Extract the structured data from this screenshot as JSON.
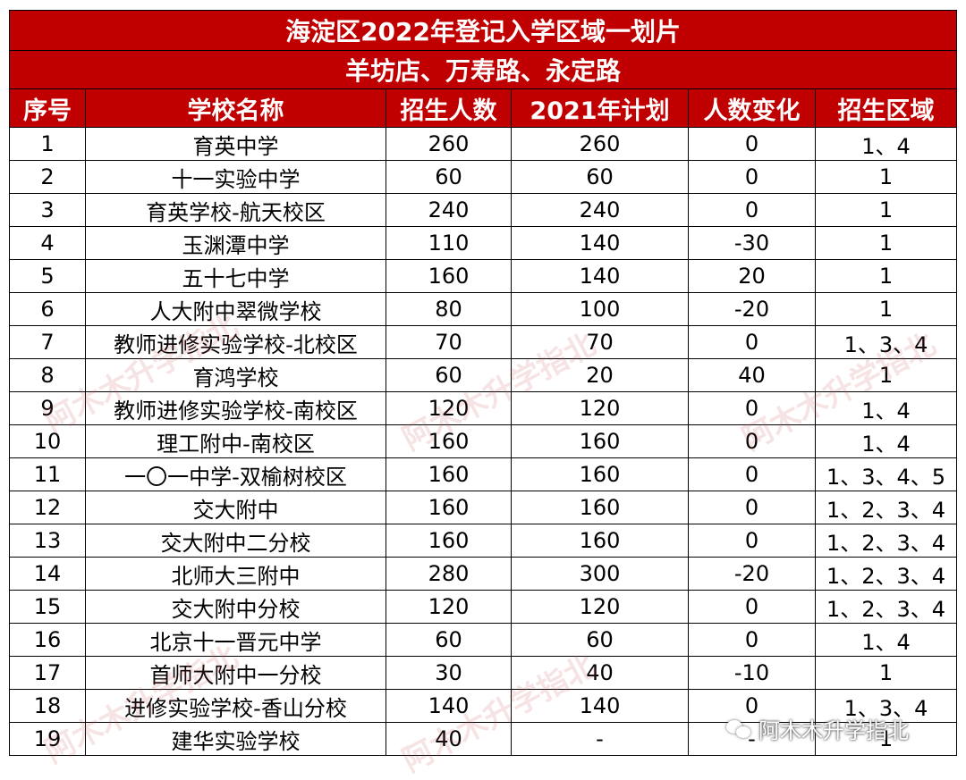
{
  "title": "海淀区2022年登记入学区域一划片",
  "subtitle": "羊坊店、万寿路、永定路",
  "headers": [
    "序号",
    "学校名称",
    "招生人数",
    "2021年计划",
    "人数变化",
    "招生区域"
  ],
  "rows": [
    [
      "1",
      "育英中学",
      "260",
      "260",
      "0",
      "1、4"
    ],
    [
      "2",
      "十一实验中学",
      "60",
      "60",
      "0",
      "1"
    ],
    [
      "3",
      "育英学校-航天校区",
      "240",
      "240",
      "0",
      "1"
    ],
    [
      "4",
      "玉渊潭中学",
      "110",
      "140",
      "-30",
      "1"
    ],
    [
      "5",
      "五十七中学",
      "160",
      "140",
      "20",
      "1"
    ],
    [
      "6",
      "人大附中翠微学校",
      "80",
      "100",
      "-20",
      "1"
    ],
    [
      "7",
      "教师进修实验学校-北校区",
      "70",
      "70",
      "0",
      "1、3、4"
    ],
    [
      "8",
      "育鸿学校",
      "60",
      "20",
      "40",
      "1"
    ],
    [
      "9",
      "教师进修实验学校-南校区",
      "120",
      "120",
      "0",
      "1、4"
    ],
    [
      "10",
      "理工附中-南校区",
      "160",
      "160",
      "0",
      "1、4"
    ],
    [
      "11",
      "一〇一中学-双榆树校区",
      "160",
      "160",
      "0",
      "1、3、4、5"
    ],
    [
      "12",
      "交大附中",
      "160",
      "160",
      "0",
      "1、2、3、4"
    ],
    [
      "13",
      "交大附中二分校",
      "160",
      "160",
      "0",
      "1、2、3、4"
    ],
    [
      "14",
      "北师大三附中",
      "280",
      "300",
      "-20",
      "1、2、3、4"
    ],
    [
      "15",
      "交大附中分校",
      "120",
      "120",
      "0",
      "1、2、3、4"
    ],
    [
      "16",
      "北京十一晋元中学",
      "60",
      "60",
      "0",
      "1、4"
    ],
    [
      "17",
      "首师大附中一分校",
      "30",
      "40",
      "-10",
      "1"
    ],
    [
      "18",
      "进修实验学校-香山分校",
      "140",
      "140",
      "0",
      "1、3、4"
    ],
    [
      "19",
      "建华实验学校",
      "40",
      "-",
      "-",
      "1"
    ]
  ],
  "watermark_text": "阿木木升学指北",
  "wechat_label": "阿木木升学指北"
}
